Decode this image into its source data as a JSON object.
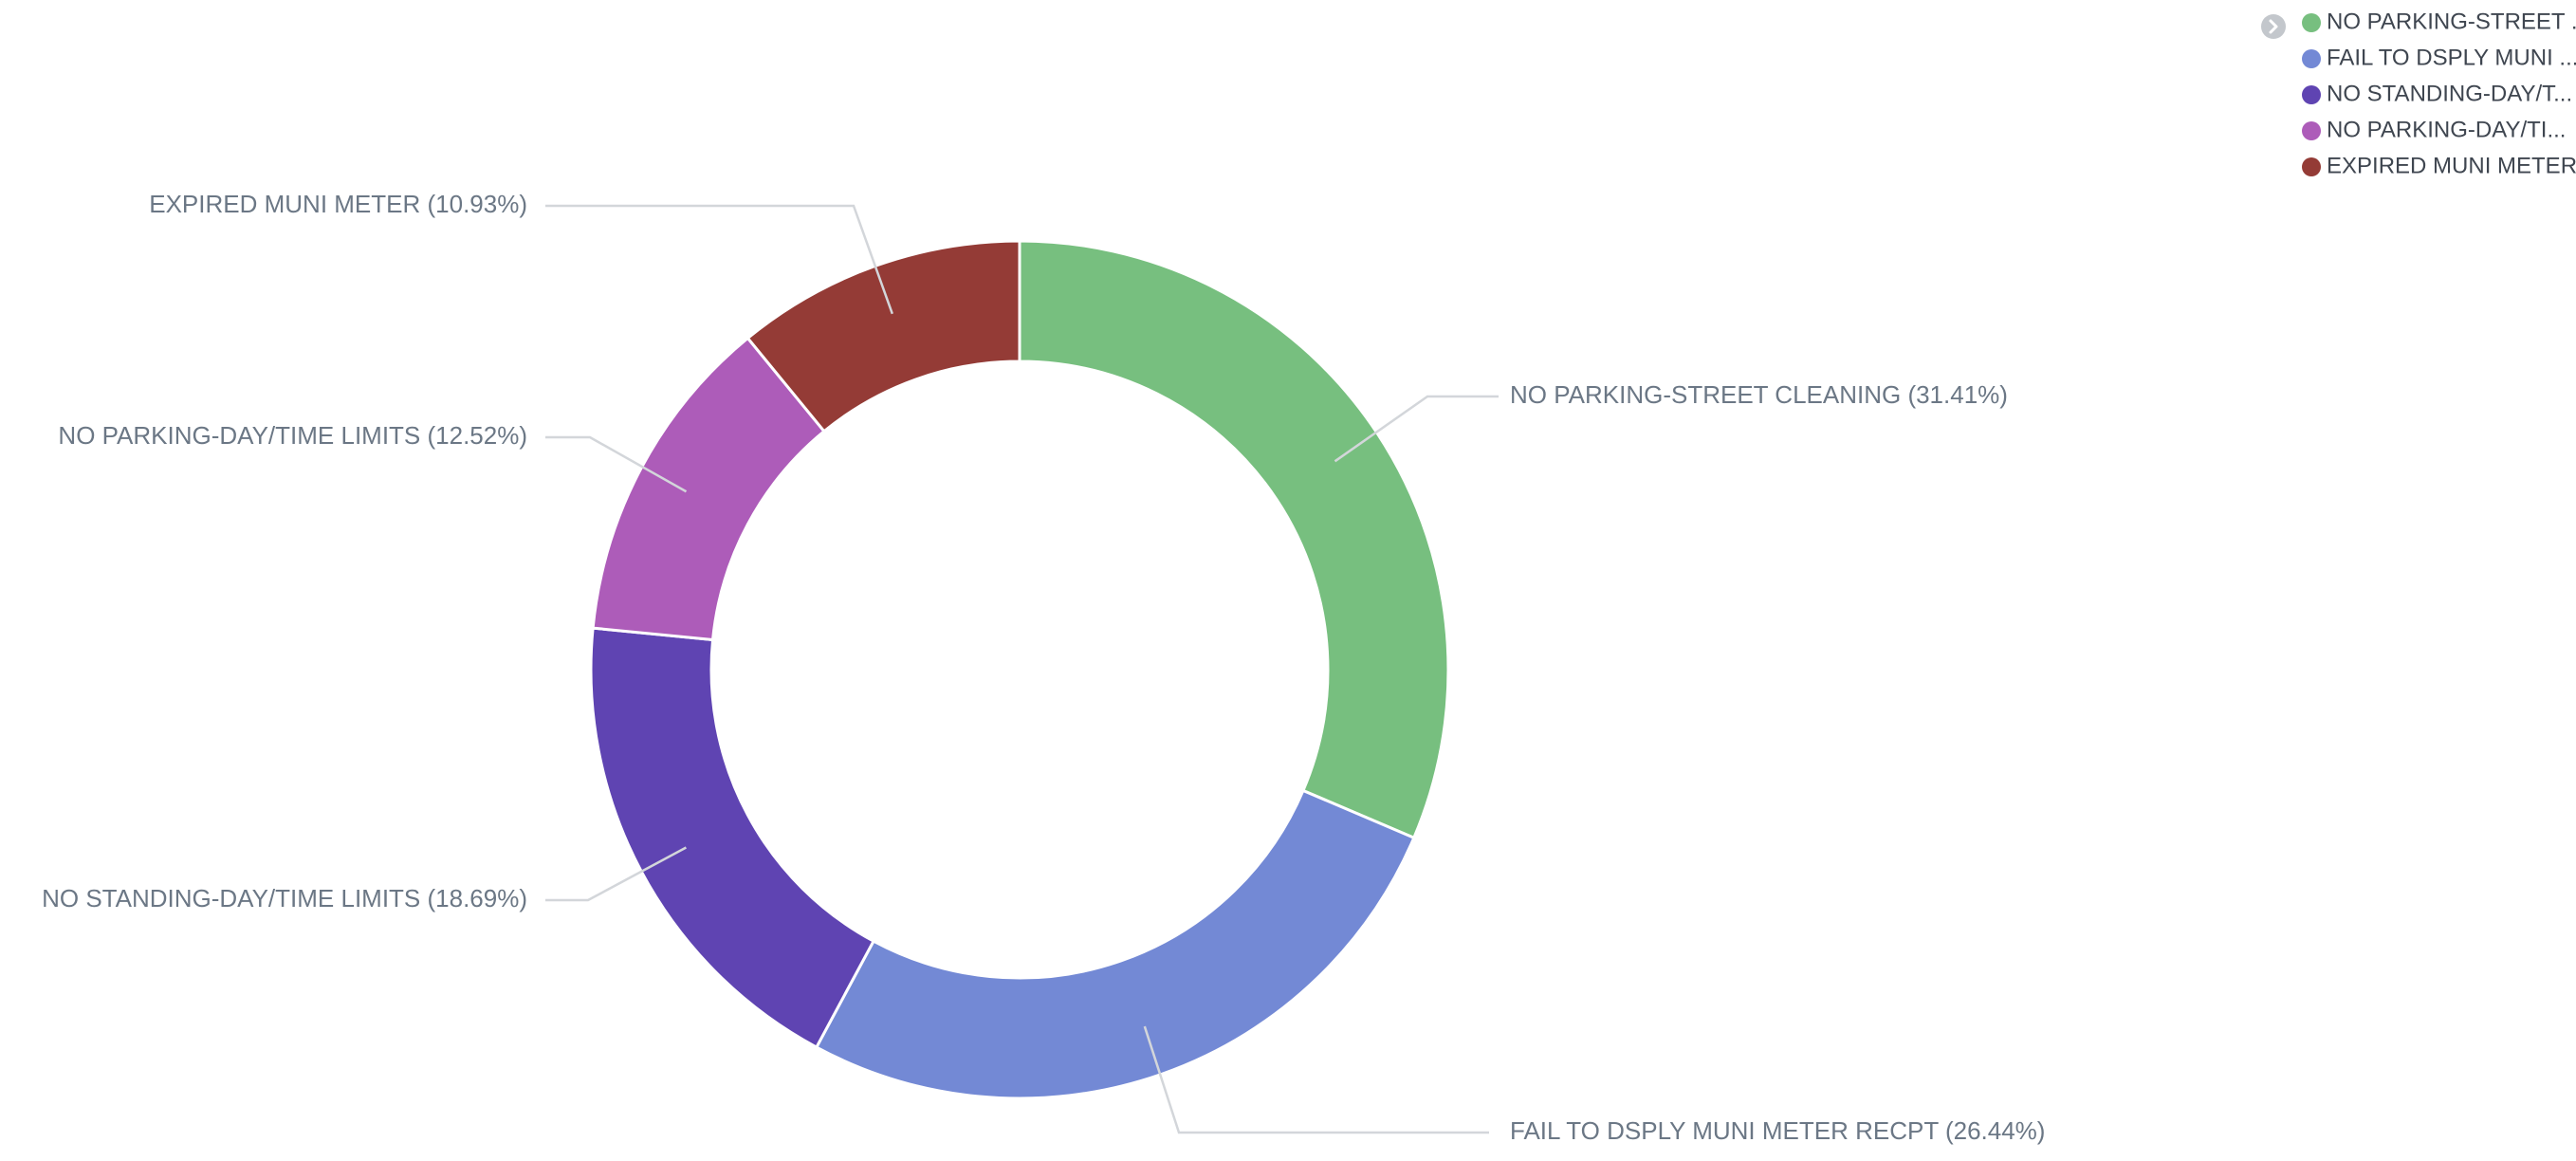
{
  "chart_data": {
    "type": "pie",
    "variant": "donut",
    "slices": [
      {
        "label": "NO PARKING-STREET CLEANING",
        "value": 31.41,
        "percent_label": "NO PARKING-STREET CLEANING (31.41%)",
        "legend_label": "NO PARKING-STREET ...",
        "color": "#77bf7f"
      },
      {
        "label": "FAIL TO DSPLY MUNI METER RECPT",
        "value": 26.44,
        "percent_label": "FAIL TO DSPLY MUNI METER RECPT (26.44%)",
        "legend_label": "FAIL TO DSPLY MUNI ...",
        "color": "#7389d5"
      },
      {
        "label": "NO STANDING-DAY/TIME LIMITS",
        "value": 18.69,
        "percent_label": "NO STANDING-DAY/TIME LIMITS (18.69%)",
        "legend_label": "NO STANDING-DAY/T...",
        "color": "#5f44b2"
      },
      {
        "label": "NO PARKING-DAY/TIME LIMITS",
        "value": 12.52,
        "percent_label": "NO PARKING-DAY/TIME LIMITS (12.52%)",
        "legend_label": "NO PARKING-DAY/TI...",
        "color": "#ad5cb9"
      },
      {
        "label": "EXPIRED MUNI METER",
        "value": 10.93,
        "percent_label": "EXPIRED MUNI METER (10.93%)",
        "legend_label": "EXPIRED MUNI METER",
        "color": "#943b36"
      }
    ],
    "legend_position": "top-right",
    "legend_toggle_icon": "chevron-right-circle-icon"
  }
}
